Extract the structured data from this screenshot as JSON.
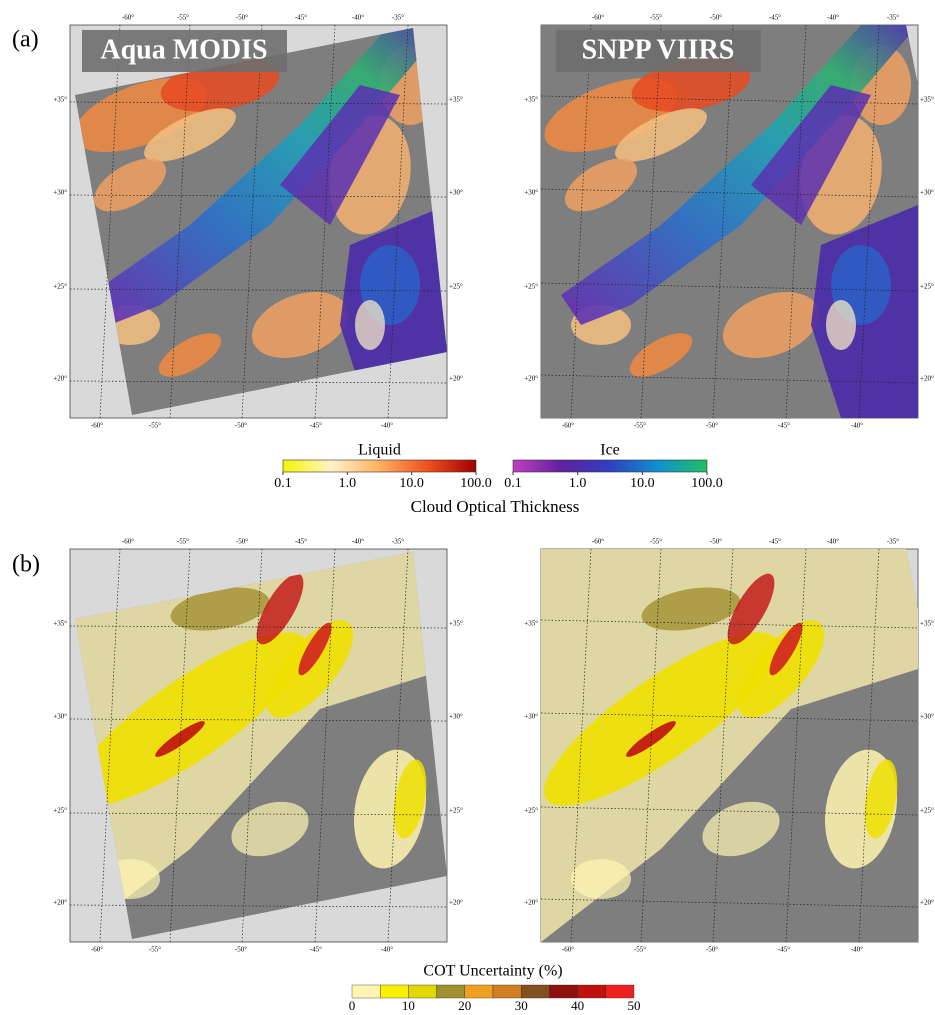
{
  "panels": [
    {
      "label": "(a)",
      "maps": [
        {
          "title": "Aqua MODIS"
        },
        {
          "title": "SNPP VIIRS"
        }
      ]
    },
    {
      "label": "(b)"
    }
  ],
  "map_axes": {
    "top_lon": [
      "-60°",
      "-55°",
      "-50°",
      "-45°",
      "-40°",
      "-35°"
    ],
    "bottom_lon": [
      "-60°",
      "-55°",
      "-50°",
      "-45°",
      "-40°"
    ],
    "lat": [
      "+35°",
      "+30°",
      "+25°",
      "+20°"
    ]
  },
  "colorbars": {
    "cot": {
      "label": "Cloud Optical Thickness",
      "liquid": {
        "title": "Liquid",
        "ticks": [
          "0.1",
          "1.0",
          "10.0",
          "100.0"
        ],
        "colors": [
          "#f5f500",
          "#fff3c8",
          "#ffb060",
          "#f05020",
          "#a00000"
        ]
      },
      "ice": {
        "title": "Ice",
        "ticks": [
          "0.1",
          "1.0",
          "10.0",
          "100.0"
        ],
        "colors": [
          "#c040c0",
          "#6020a0",
          "#3040c0",
          "#1090d0",
          "#20c060"
        ]
      }
    },
    "uncertainty": {
      "label": "COT Uncertainty (%)",
      "ticks": [
        0,
        10,
        20,
        30,
        40,
        50
      ],
      "colors": [
        "#fff5b0",
        "#f8f000",
        "#e0d800",
        "#a09030",
        "#f0a020",
        "#d08020",
        "#805020",
        "#901010",
        "#c01010",
        "#f02020"
      ]
    }
  }
}
